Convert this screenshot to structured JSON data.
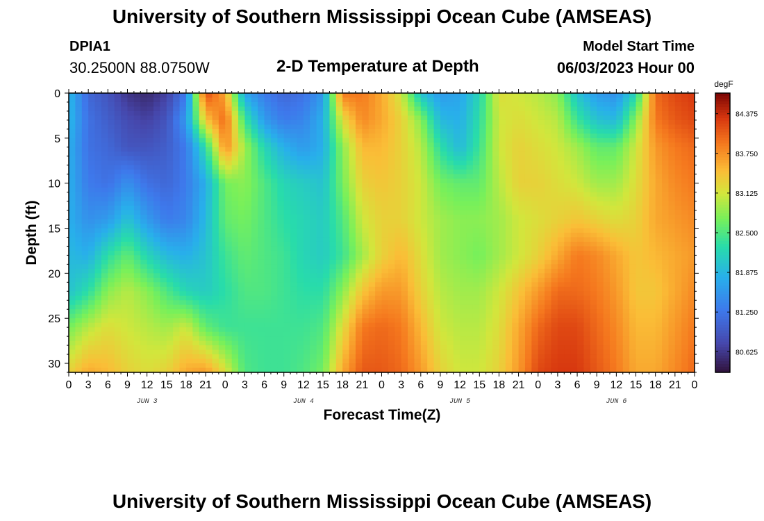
{
  "page": {
    "title": "University of Southern Mississippi Ocean Cube (AMSEAS)",
    "bottom_title": "University of Southern Mississippi Ocean Cube (AMSEAS)"
  },
  "header": {
    "station_id": "DPIA1",
    "coordinates": "30.2500N  88.0750W",
    "plot_title": "2-D Temperature at Depth",
    "model_start_label": "Model Start Time",
    "model_start_time": "06/03/2023 Hour 00"
  },
  "chart_data": {
    "type": "heatmap",
    "title": "2-D Temperature at Depth",
    "xlabel": "Forecast Time(Z)",
    "ylabel": "Depth (ft)",
    "x_range_hours": [
      0,
      96
    ],
    "y_range_ft": [
      0,
      31
    ],
    "x_tick_labels": [
      "0",
      "3",
      "6",
      "9",
      "12",
      "15",
      "18",
      "21",
      "0",
      "3",
      "6",
      "9",
      "12",
      "15",
      "18",
      "21",
      "0",
      "3",
      "6",
      "9",
      "12",
      "15",
      "18",
      "21",
      "0",
      "3",
      "6",
      "9",
      "12",
      "15",
      "18",
      "21",
      "0"
    ],
    "y_ticks": [
      0,
      5,
      10,
      15,
      20,
      25,
      30
    ],
    "day_labels": [
      {
        "hour": 12,
        "label": "JUN 3"
      },
      {
        "hour": 36,
        "label": "JUN 4"
      },
      {
        "hour": 60,
        "label": "JUN 5"
      },
      {
        "hour": 84,
        "label": "JUN 6"
      }
    ],
    "colorbar": {
      "label": "degF",
      "min": 80.3,
      "max": 84.7,
      "ticks": [
        "84.375",
        "83.750",
        "83.125",
        "82.500",
        "81.875",
        "81.250",
        "80.625"
      ]
    },
    "temperature_grid": {
      "depths_ft": [
        0,
        3,
        6,
        10,
        14,
        18,
        22,
        26,
        31
      ],
      "hours": [
        0,
        3,
        6,
        9,
        12,
        15,
        18,
        21,
        24,
        27,
        30,
        33,
        36,
        39,
        42,
        45,
        48,
        51,
        54,
        57,
        60,
        63,
        66,
        69,
        72,
        75,
        78,
        81,
        84,
        87,
        90,
        93,
        96
      ],
      "values_degF": [
        [
          81.9,
          81.1,
          80.9,
          80.6,
          80.5,
          80.7,
          81.3,
          84.2,
          83.6,
          81.7,
          81.3,
          81.1,
          81.2,
          81.6,
          83.9,
          83.9,
          83.6,
          83.1,
          82.0,
          81.6,
          81.7,
          82.2,
          83.2,
          83.1,
          83.0,
          82.8,
          82.0,
          81.6,
          81.5,
          82.2,
          84.0,
          84.2,
          84.3
        ],
        [
          81.9,
          81.2,
          81.0,
          80.8,
          80.7,
          80.9,
          81.6,
          83.4,
          84.0,
          82.4,
          81.6,
          81.3,
          81.4,
          81.8,
          83.2,
          83.8,
          83.6,
          83.3,
          82.8,
          81.9,
          81.8,
          82.3,
          83.1,
          83.2,
          83.1,
          83.0,
          82.4,
          82.0,
          81.9,
          82.8,
          83.9,
          84.1,
          84.2
        ],
        [
          81.8,
          81.2,
          81.1,
          80.9,
          80.9,
          81.0,
          81.3,
          82.3,
          83.8,
          82.9,
          82.2,
          81.8,
          81.6,
          81.8,
          82.8,
          83.5,
          83.5,
          83.3,
          83.0,
          82.3,
          81.9,
          82.4,
          83.1,
          83.3,
          83.2,
          83.1,
          82.9,
          82.6,
          82.6,
          83.1,
          83.7,
          83.9,
          84.0
        ],
        [
          81.8,
          81.3,
          81.2,
          81.5,
          81.2,
          81.1,
          81.3,
          81.8,
          82.7,
          82.8,
          82.5,
          82.2,
          82.1,
          82.0,
          82.7,
          83.3,
          83.4,
          83.3,
          83.1,
          82.7,
          82.6,
          82.6,
          83.0,
          83.3,
          83.3,
          83.2,
          83.1,
          82.9,
          82.9,
          83.2,
          83.6,
          83.8,
          83.9
        ],
        [
          81.8,
          81.5,
          81.6,
          82.0,
          81.6,
          81.3,
          81.4,
          81.9,
          82.6,
          82.7,
          82.5,
          82.3,
          82.2,
          82.1,
          82.5,
          83.1,
          83.3,
          83.3,
          83.1,
          82.9,
          82.8,
          82.8,
          82.9,
          83.1,
          83.2,
          83.3,
          83.4,
          83.3,
          83.2,
          83.3,
          83.6,
          83.7,
          83.8
        ],
        [
          81.9,
          81.8,
          82.3,
          82.6,
          82.2,
          81.9,
          81.8,
          82.0,
          82.4,
          82.6,
          82.5,
          82.4,
          82.2,
          82.1,
          82.4,
          82.9,
          83.3,
          83.5,
          83.2,
          82.9,
          82.8,
          82.7,
          82.9,
          83.1,
          83.3,
          83.6,
          83.9,
          83.8,
          83.6,
          83.4,
          83.5,
          83.6,
          83.7
        ],
        [
          82.0,
          82.3,
          82.8,
          83.0,
          82.8,
          82.5,
          82.2,
          82.1,
          82.3,
          82.5,
          82.5,
          82.4,
          82.3,
          82.3,
          82.8,
          83.4,
          83.7,
          83.7,
          83.3,
          83.0,
          82.9,
          82.9,
          83.1,
          83.4,
          83.7,
          84.0,
          84.0,
          83.9,
          83.7,
          83.4,
          83.4,
          83.6,
          83.8
        ],
        [
          82.7,
          83.0,
          83.2,
          83.1,
          83.0,
          82.9,
          83.1,
          82.6,
          82.4,
          82.4,
          82.4,
          82.4,
          82.4,
          82.5,
          83.2,
          83.9,
          84.0,
          83.9,
          83.5,
          83.1,
          83.0,
          83.0,
          83.2,
          83.6,
          84.0,
          84.2,
          84.2,
          84.0,
          83.8,
          83.5,
          83.5,
          83.7,
          83.9
        ],
        [
          83.3,
          83.6,
          83.5,
          83.3,
          83.2,
          83.3,
          83.6,
          83.7,
          83.2,
          82.5,
          82.4,
          82.4,
          82.5,
          82.7,
          83.6,
          84.1,
          84.1,
          84.0,
          83.7,
          83.3,
          83.1,
          83.1,
          83.3,
          83.7,
          84.2,
          84.3,
          84.3,
          84.1,
          83.9,
          83.6,
          83.6,
          83.8,
          84.0
        ]
      ]
    }
  }
}
